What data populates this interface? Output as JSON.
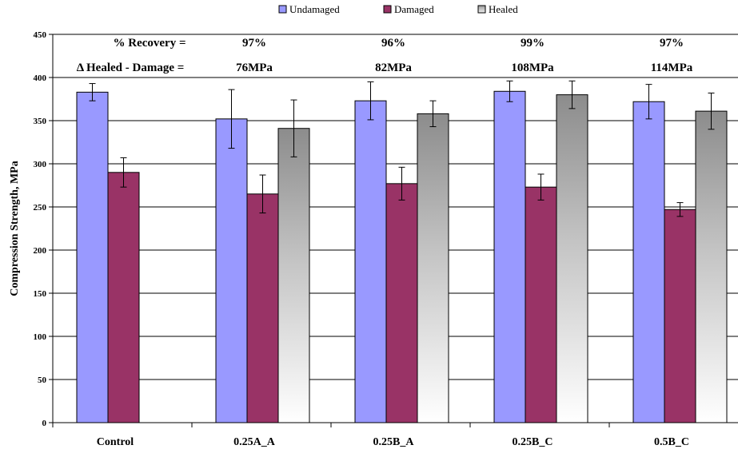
{
  "chart_data": {
    "type": "bar",
    "title": "",
    "xlabel": "",
    "ylabel": "Compression Strength, MPa",
    "ylim": [
      0,
      450
    ],
    "yticks": [
      0,
      50,
      100,
      150,
      200,
      250,
      300,
      350,
      400,
      450
    ],
    "grid": true,
    "legend_position": "top",
    "categories": [
      "Control",
      "0.25A_A",
      "0.25B_A",
      "0.25B_C",
      "0.5B_C"
    ],
    "series": [
      {
        "name": "Undamaged",
        "color": "#9999ff",
        "values": [
          383,
          352,
          373,
          384,
          372
        ],
        "errors": [
          10,
          34,
          22,
          12,
          20
        ]
      },
      {
        "name": "Damaged",
        "color": "#993366",
        "values": [
          290,
          265,
          277,
          273,
          247
        ],
        "errors": [
          17,
          22,
          19,
          15,
          8
        ]
      },
      {
        "name": "Healed",
        "color": "gradient-gray",
        "values": [
          0,
          341,
          358,
          380,
          361
        ],
        "errors": [
          0,
          33,
          15,
          16,
          21
        ]
      }
    ],
    "annotations": {
      "recovery_label": "% Recovery =",
      "recovery_values": [
        "97%",
        "96%",
        "99%",
        "97%"
      ],
      "delta_label": "Δ Healed - Damage =",
      "delta_values": [
        "76MPa",
        "82MPa",
        "108MPa",
        "114MPa"
      ]
    }
  }
}
